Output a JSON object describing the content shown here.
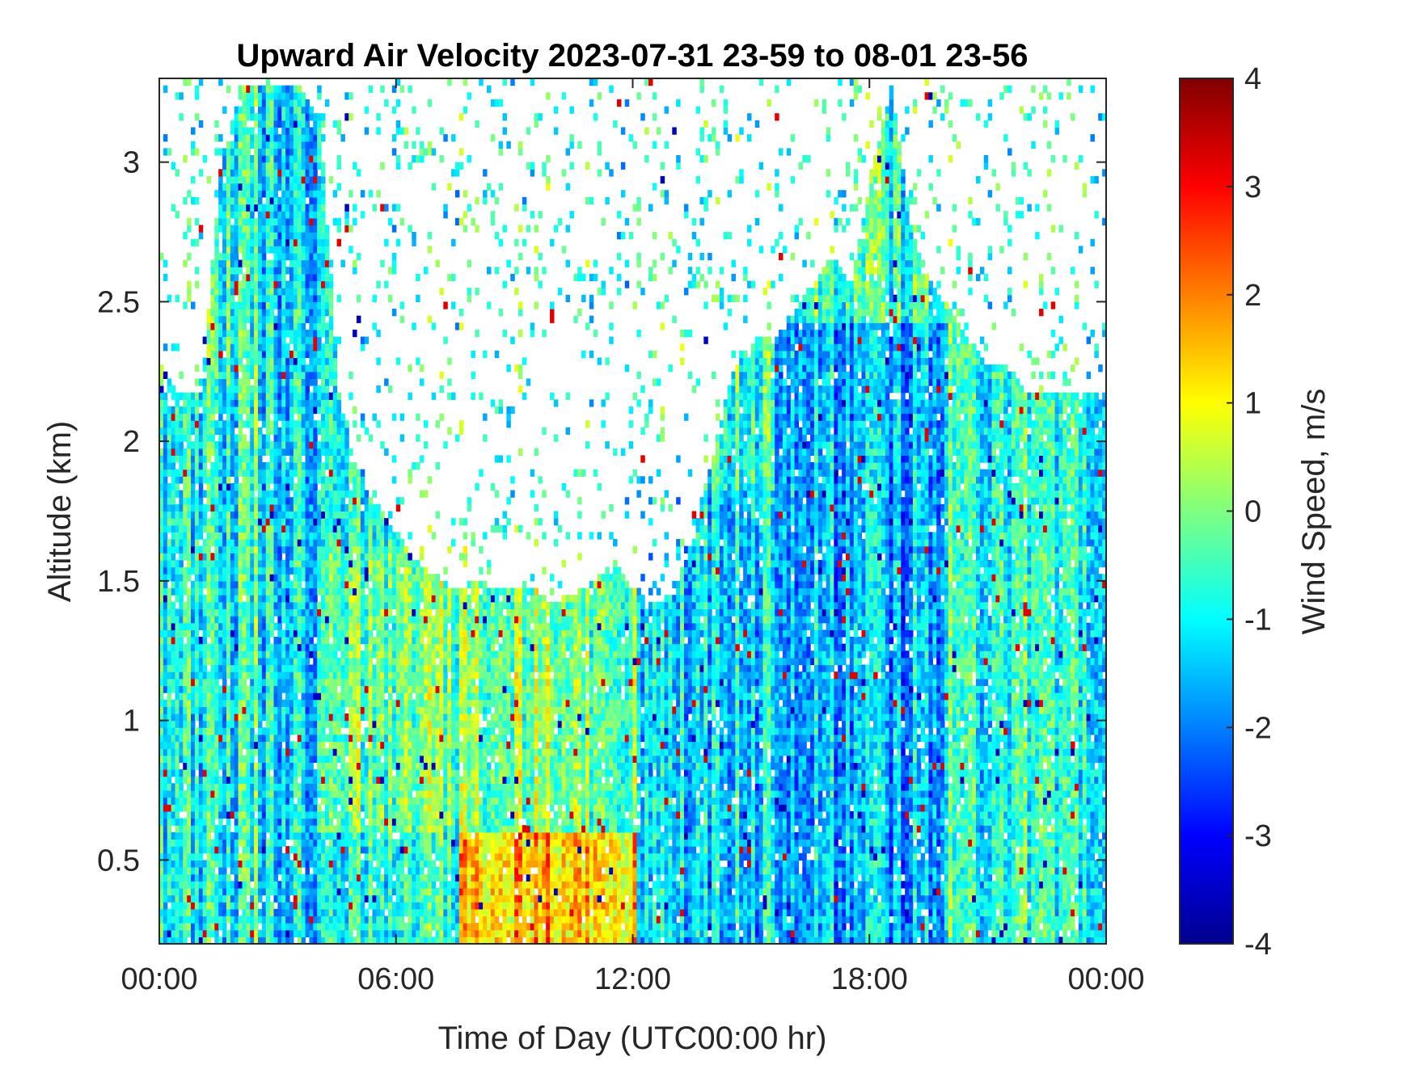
{
  "chart_data": {
    "type": "heatmap",
    "title": "Upward Air Velocity 2023-07-31 23-59 to 08-01 23-56",
    "xlabel": "Time of Day (UTC00:00 hr)",
    "ylabel": "Altitude (km)",
    "colorbar_label": "Wind Speed, m/s",
    "colormap": "jet",
    "x_unit": "hours",
    "xlim": [
      0,
      24
    ],
    "ylim": [
      0.2,
      3.3
    ],
    "clim": [
      -4,
      4
    ],
    "x_ticks": [
      0,
      6,
      12,
      18,
      24
    ],
    "x_tick_labels": [
      "00:00",
      "06:00",
      "12:00",
      "18:00",
      "00:00"
    ],
    "y_ticks": [
      0.5,
      1,
      1.5,
      2,
      2.5,
      3
    ],
    "y_tick_labels": [
      "0.5",
      "1",
      "1.5",
      "2",
      "2.5",
      "3"
    ],
    "c_ticks": [
      4,
      3,
      2,
      1,
      0,
      -1,
      -2,
      -3,
      -4
    ],
    "c_tick_labels": [
      "4",
      "3",
      "2",
      "1",
      "0",
      "-1",
      "-2",
      "-3",
      "-4"
    ],
    "grid": false,
    "data_top_altitude_km": [
      [
        0.0,
        2.3
      ],
      [
        0.5,
        2.2
      ],
      [
        1.0,
        2.2
      ],
      [
        1.5,
        3.0
      ],
      [
        2.0,
        3.3
      ],
      [
        2.5,
        3.3
      ],
      [
        3.0,
        3.3
      ],
      [
        3.5,
        3.3
      ],
      [
        4.0,
        3.2
      ],
      [
        4.5,
        2.2
      ],
      [
        5.0,
        1.9
      ],
      [
        5.5,
        1.8
      ],
      [
        6.0,
        1.7
      ],
      [
        6.5,
        1.6
      ],
      [
        7.0,
        1.55
      ],
      [
        7.5,
        1.5
      ],
      [
        8.0,
        1.55
      ],
      [
        8.5,
        1.5
      ],
      [
        9.0,
        1.5
      ],
      [
        9.5,
        1.5
      ],
      [
        10.0,
        1.45
      ],
      [
        10.5,
        1.5
      ],
      [
        11.0,
        1.55
      ],
      [
        11.5,
        1.6
      ],
      [
        12.0,
        1.5
      ],
      [
        12.5,
        1.45
      ],
      [
        13.0,
        1.5
      ],
      [
        13.5,
        1.7
      ],
      [
        14.0,
        2.0
      ],
      [
        14.5,
        2.3
      ],
      [
        15.0,
        2.4
      ],
      [
        15.5,
        2.4
      ],
      [
        16.0,
        2.5
      ],
      [
        16.5,
        2.6
      ],
      [
        17.0,
        2.7
      ],
      [
        17.5,
        2.6
      ],
      [
        18.0,
        3.0
      ],
      [
        18.5,
        3.3
      ],
      [
        19.0,
        2.8
      ],
      [
        19.5,
        2.6
      ],
      [
        20.0,
        2.5
      ],
      [
        20.5,
        2.4
      ],
      [
        21.0,
        2.3
      ],
      [
        21.5,
        2.3
      ],
      [
        22.0,
        2.2
      ],
      [
        22.5,
        2.2
      ],
      [
        23.0,
        2.2
      ],
      [
        23.5,
        2.2
      ],
      [
        24.0,
        2.2
      ]
    ],
    "regional_mean_velocity": [
      {
        "t_start": 0.0,
        "t_end": 2.0,
        "alt_start": 0.2,
        "alt_end": 2.2,
        "value": -0.9
      },
      {
        "t_start": 2.5,
        "t_end": 4.0,
        "alt_start": 0.2,
        "alt_end": 3.3,
        "value": -1.3
      },
      {
        "t_start": 4.0,
        "t_end": 12.0,
        "alt_start": 0.6,
        "alt_end": 1.6,
        "value": 0.0
      },
      {
        "t_start": 7.5,
        "t_end": 12.0,
        "alt_start": 0.2,
        "alt_end": 0.6,
        "value": 1.5
      },
      {
        "t_start": 12.0,
        "t_end": 15.5,
        "alt_start": 0.2,
        "alt_end": 1.8,
        "value": -1.2
      },
      {
        "t_start": 15.5,
        "t_end": 20.0,
        "alt_start": 0.2,
        "alt_end": 2.4,
        "value": -1.6
      },
      {
        "t_start": 20.0,
        "t_end": 24.0,
        "alt_start": 0.4,
        "alt_end": 2.2,
        "value": -0.7
      }
    ]
  }
}
